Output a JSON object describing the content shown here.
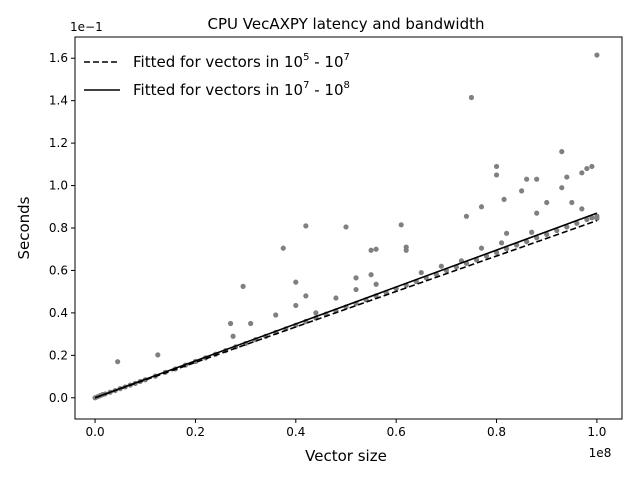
{
  "chart_data": {
    "type": "scatter",
    "title": "CPU VecAXPY latency and bandwidth",
    "xlabel": "Vector size",
    "ylabel": "Seconds",
    "x_offset_label": "1e8",
    "y_offset_label": "1e−1",
    "xlim": [
      -0.04,
      1.05
    ],
    "ylim": [
      -0.1,
      1.7
    ],
    "x_ticks": [
      0.0,
      0.2,
      0.4,
      0.6,
      0.8,
      1.0
    ],
    "x_tick_labels": [
      "0.0",
      "0.2",
      "0.4",
      "0.6",
      "0.8",
      "1.0"
    ],
    "y_ticks": [
      0.0,
      0.2,
      0.4,
      0.6,
      0.8,
      1.0,
      1.2,
      1.4,
      1.6
    ],
    "y_tick_labels": [
      "0.0",
      "0.2",
      "0.4",
      "0.6",
      "0.8",
      "1.0",
      "1.2",
      "1.4",
      "1.6"
    ],
    "grid": false,
    "legend_position": "top-left",
    "colors": {
      "scatter": "#808080",
      "lines": "#000000"
    },
    "series": [
      {
        "kind": "line",
        "style": "dashed",
        "name": "Fitted for vectors in 10^5 - 10^7",
        "legend_base": "Fitted for vectors in 10",
        "legend_exp1": "5",
        "legend_mid": " - 10",
        "legend_exp2": "7",
        "x": [
          0.0,
          1.0
        ],
        "y": [
          0.0,
          0.835
        ]
      },
      {
        "kind": "line",
        "style": "solid",
        "name": "Fitted for vectors in 10^7 - 10^8",
        "legend_base": "Fitted for vectors in 10",
        "legend_exp1": "7",
        "legend_mid": " - 10",
        "legend_exp2": "8",
        "x": [
          0.0,
          1.0
        ],
        "y": [
          0.0,
          0.87
        ]
      },
      {
        "kind": "scatter",
        "points": [
          [
            0.0,
            0.0
          ],
          [
            0.005,
            0.005
          ],
          [
            0.01,
            0.01
          ],
          [
            0.015,
            0.015
          ],
          [
            0.02,
            0.018
          ],
          [
            0.03,
            0.026
          ],
          [
            0.04,
            0.034
          ],
          [
            0.05,
            0.043
          ],
          [
            0.06,
            0.051
          ],
          [
            0.07,
            0.06
          ],
          [
            0.08,
            0.068
          ],
          [
            0.09,
            0.077
          ],
          [
            0.1,
            0.085
          ],
          [
            0.12,
            0.102
          ],
          [
            0.14,
            0.12
          ],
          [
            0.16,
            0.136
          ],
          [
            0.18,
            0.154
          ],
          [
            0.2,
            0.171
          ],
          [
            0.22,
            0.188
          ],
          [
            0.24,
            0.205
          ],
          [
            0.26,
            0.222
          ],
          [
            0.28,
            0.24
          ],
          [
            0.3,
            0.256
          ],
          [
            0.32,
            0.274
          ],
          [
            0.34,
            0.29
          ],
          [
            0.36,
            0.308
          ],
          [
            0.38,
            0.325
          ],
          [
            0.4,
            0.342
          ],
          [
            0.42,
            0.36
          ],
          [
            0.44,
            0.376
          ],
          [
            0.46,
            0.394
          ],
          [
            0.48,
            0.41
          ],
          [
            0.5,
            0.428
          ],
          [
            0.52,
            0.445
          ],
          [
            0.54,
            0.462
          ],
          [
            0.56,
            0.48
          ],
          [
            0.58,
            0.496
          ],
          [
            0.6,
            0.514
          ],
          [
            0.62,
            0.53
          ],
          [
            0.64,
            0.548
          ],
          [
            0.66,
            0.565
          ],
          [
            0.68,
            0.582
          ],
          [
            0.7,
            0.6
          ],
          [
            0.72,
            0.616
          ],
          [
            0.74,
            0.634
          ],
          [
            0.76,
            0.65
          ],
          [
            0.78,
            0.668
          ],
          [
            0.8,
            0.685
          ],
          [
            0.82,
            0.702
          ],
          [
            0.84,
            0.72
          ],
          [
            0.86,
            0.736
          ],
          [
            0.88,
            0.754
          ],
          [
            0.9,
            0.77
          ],
          [
            0.92,
            0.788
          ],
          [
            0.94,
            0.805
          ],
          [
            0.96,
            0.822
          ],
          [
            0.98,
            0.84
          ],
          [
            0.99,
            0.848
          ],
          [
            1.0,
            0.856
          ],
          [
            0.045,
            0.17
          ],
          [
            0.125,
            0.202
          ],
          [
            0.27,
            0.35
          ],
          [
            0.275,
            0.29
          ],
          [
            0.295,
            0.525
          ],
          [
            0.31,
            0.35
          ],
          [
            0.36,
            0.39
          ],
          [
            0.375,
            0.705
          ],
          [
            0.4,
            0.545
          ],
          [
            0.4,
            0.435
          ],
          [
            0.42,
            0.81
          ],
          [
            0.42,
            0.48
          ],
          [
            0.44,
            0.4
          ],
          [
            0.48,
            0.47
          ],
          [
            0.5,
            0.805
          ],
          [
            0.52,
            0.565
          ],
          [
            0.52,
            0.51
          ],
          [
            0.55,
            0.695
          ],
          [
            0.55,
            0.58
          ],
          [
            0.56,
            0.7
          ],
          [
            0.56,
            0.535
          ],
          [
            0.61,
            0.815
          ],
          [
            0.62,
            0.695
          ],
          [
            0.62,
            0.71
          ],
          [
            0.65,
            0.59
          ],
          [
            0.69,
            0.62
          ],
          [
            0.73,
            0.645
          ],
          [
            0.74,
            0.855
          ],
          [
            0.75,
            1.415
          ],
          [
            0.77,
            0.9
          ],
          [
            0.77,
            0.705
          ],
          [
            0.8,
            1.09
          ],
          [
            0.8,
            1.05
          ],
          [
            0.81,
            0.73
          ],
          [
            0.815,
            0.935
          ],
          [
            0.82,
            0.775
          ],
          [
            0.85,
            0.975
          ],
          [
            0.86,
            1.03
          ],
          [
            0.87,
            0.78
          ],
          [
            0.88,
            1.03
          ],
          [
            0.88,
            0.87
          ],
          [
            0.9,
            0.92
          ],
          [
            0.93,
            1.16
          ],
          [
            0.93,
            0.99
          ],
          [
            0.94,
            1.04
          ],
          [
            0.95,
            0.92
          ],
          [
            0.97,
            1.06
          ],
          [
            0.97,
            0.89
          ],
          [
            0.98,
            1.08
          ],
          [
            0.99,
            1.09
          ],
          [
            1.0,
            1.615
          ],
          [
            1.0,
            0.845
          ]
        ]
      }
    ]
  }
}
